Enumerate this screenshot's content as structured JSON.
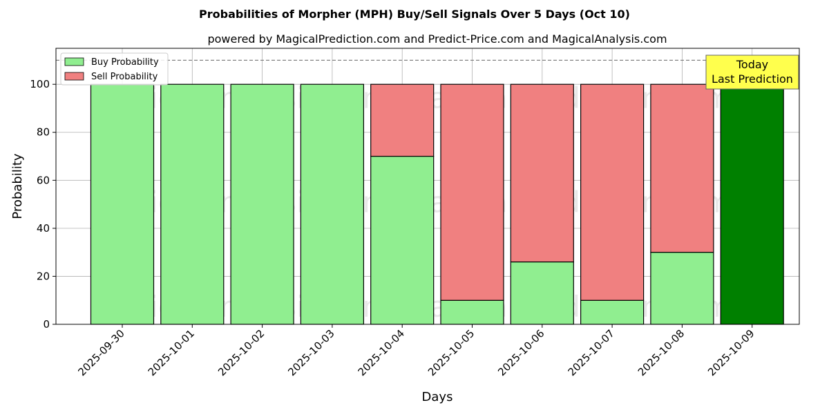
{
  "chart_data": {
    "type": "bar",
    "stacked": true,
    "title": "Probabilities of Morpher (MPH) Buy/Sell Signals Over 5 Days (Oct 10)",
    "subtitle": "powered by MagicalPrediction.com and Predict-Price.com and MagicalAnalysis.com",
    "xlabel": "Days",
    "ylabel": "Probability",
    "ylim": [
      0,
      115
    ],
    "yticks": [
      0,
      20,
      40,
      60,
      80,
      100
    ],
    "grid": true,
    "categories": [
      "2025-09-30",
      "2025-10-01",
      "2025-10-02",
      "2025-10-03",
      "2025-10-04",
      "2025-10-05",
      "2025-10-06",
      "2025-10-07",
      "2025-10-08",
      "2025-10-09"
    ],
    "series": [
      {
        "name": "Buy Probability",
        "color": "#90ee90",
        "values": [
          100,
          100,
          100,
          100,
          70,
          10,
          26,
          10,
          30,
          100
        ]
      },
      {
        "name": "Sell Probability",
        "color": "#f08080",
        "values": [
          0,
          0,
          0,
          0,
          30,
          90,
          74,
          90,
          70,
          0
        ]
      }
    ],
    "highlight": {
      "index": 9,
      "color": "#008000"
    },
    "reference_line": {
      "y": 110,
      "style": "dashed",
      "color": "#808080"
    },
    "legend_position": "top-left",
    "annotation": {
      "lines": [
        "Today",
        "Last Prediction"
      ],
      "background": "#ffff4d",
      "target_index": 9
    },
    "watermarks": [
      "MagicalAnalysis.com",
      "MagicalPrediction.com"
    ]
  }
}
